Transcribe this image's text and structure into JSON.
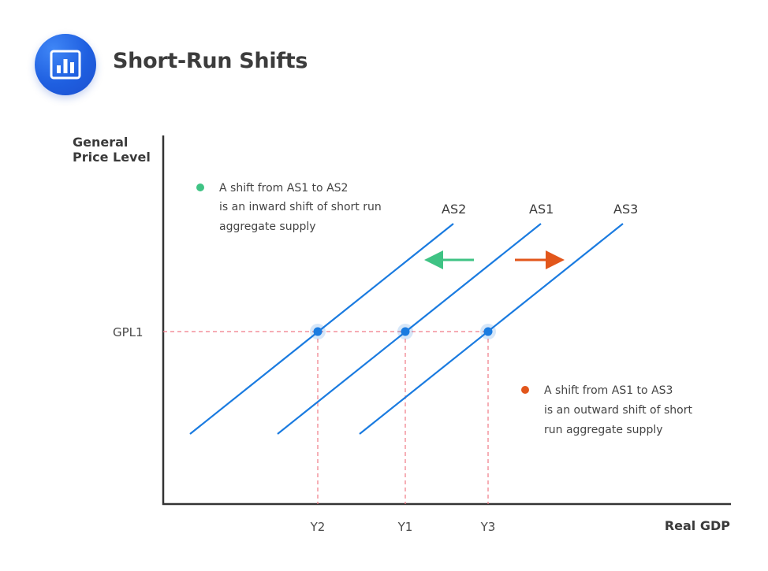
{
  "header": {
    "title": "Short-Run Shifts",
    "logo_icon": "bar-chart-icon",
    "logo_color": "#1f5fe0"
  },
  "diagram": {
    "y_axis_label": [
      "General",
      "Price Level"
    ],
    "x_axis_label": "Real GDP",
    "price_level_label": "GPL1",
    "curves": [
      {
        "label": "AS2",
        "output_label": "Y2"
      },
      {
        "label": "AS1",
        "output_label": "Y1"
      },
      {
        "label": "AS3",
        "output_label": "Y3"
      }
    ],
    "inward_note": [
      "A shift from AS1 to AS2",
      "is an inward shift of short run",
      "aggregate supply"
    ],
    "outward_note": [
      "A shift from AS1 to AS3",
      "is an outward shift of short",
      "run aggregate supply"
    ],
    "colors": {
      "curve": "#1a7be0",
      "guide": "#f07a86",
      "inward": "#3fc384",
      "outward": "#e2561b",
      "axis": "#333333"
    }
  }
}
